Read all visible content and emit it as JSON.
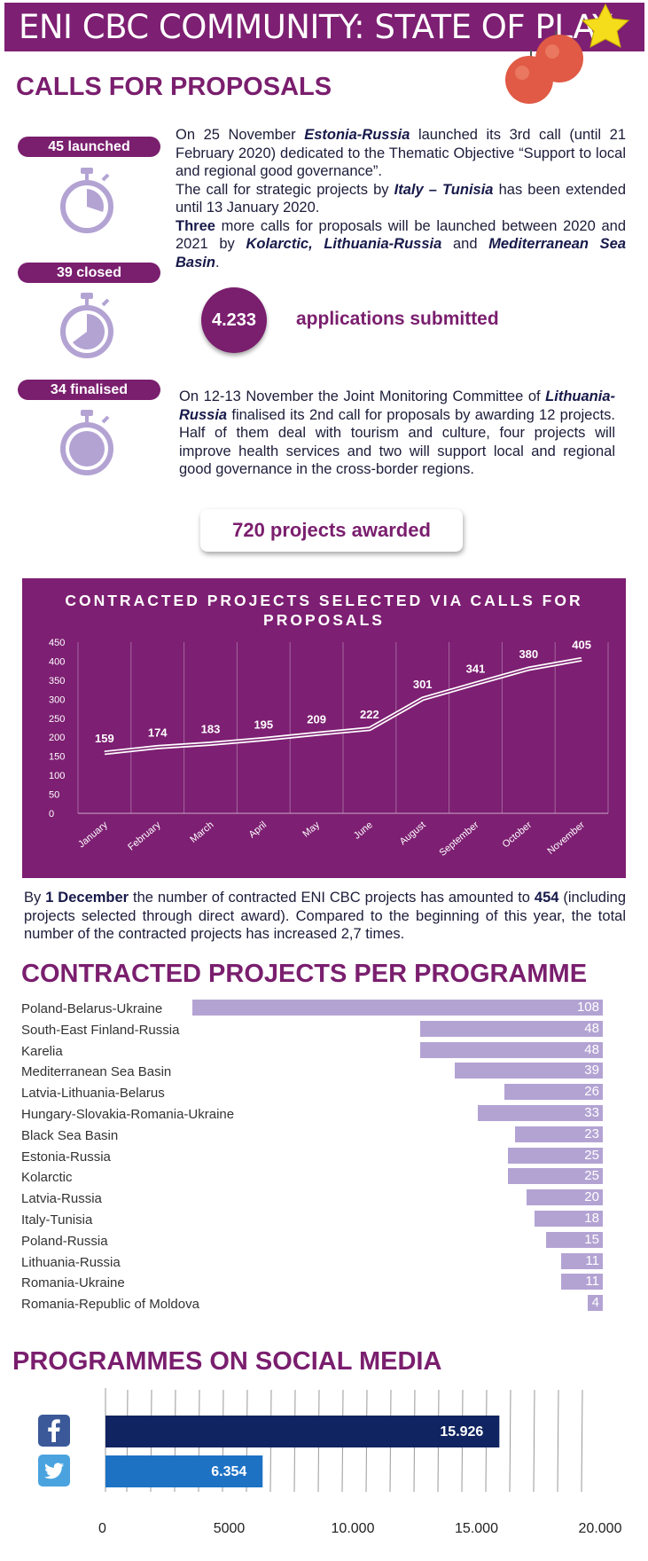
{
  "header": {
    "title": "ENI CBC COMMUNITY: STATE OF PLAY"
  },
  "calls": {
    "section_title": "CALLS FOR PROPOSALS",
    "launched_label": "45 launched",
    "closed_label": "39 closed",
    "finalised_label": "34 finalised",
    "para1": {
      "t1": "On 25 November ",
      "b1": "Estonia-Russia",
      "t2": " launched its 3rd call (until 21 February 2020) dedicated to the Thematic Objective “Support to local and regional good governance”.",
      "t3": "The call for strategic projects by ",
      "b2": "Italy – Tunisia",
      "t4": " has been extended until 13 January 2020.",
      "b3": "Three",
      "t5": " more calls for proposals will be launched between 2020 and 2021 by ",
      "b4": "Kolarctic, Lithuania-Russia",
      "t6": " and ",
      "b5": "Mediterranean Sea Basin",
      "t7": "."
    },
    "applications_number": "4.233",
    "applications_label": "applications submitted",
    "para2": {
      "t1": "On 12-13 November the Joint Monitoring Committee of ",
      "b1": "Lithuania-Russia",
      "t2": " finalised its 2nd call for proposals by awarding 12 projects. Half of them deal with tourism and culture, four projects will improve health services and two will support local and regional good governance in the cross-border regions."
    },
    "awarded_label": "720 projects awarded"
  },
  "chart_data": [
    {
      "type": "line",
      "title": "CONTRACTED PROJECTS SELECTED VIA CALLS FOR PROPOSALS",
      "categories": [
        "January",
        "February",
        "March",
        "April",
        "May",
        "June",
        "August",
        "September",
        "October",
        "November"
      ],
      "values": [
        159,
        174,
        183,
        195,
        209,
        222,
        301,
        341,
        380,
        405
      ],
      "ylim": [
        0,
        450
      ],
      "yticks": [
        0,
        50,
        100,
        150,
        200,
        250,
        300,
        350,
        400,
        450
      ],
      "grid": "vertical"
    },
    {
      "type": "bar",
      "orientation": "horizontal",
      "categories": [
        "Poland-Belarus-Ukraine",
        "South-East Finland-Russia",
        "Karelia",
        "Mediterranean Sea Basin",
        "Latvia-Lithuania-Belarus",
        "Hungary-Slovakia-Romania-Ukraine",
        "Black Sea Basin",
        "Estonia-Russia",
        "Kolarctic",
        "Latvia-Russia",
        "Italy-Tunisia",
        "Poland-Russia",
        "Lithuania-Russia",
        "Romania-Ukraine",
        "Romania-Republic of Moldova"
      ],
      "values": [
        108,
        48,
        48,
        39,
        26,
        33,
        23,
        25,
        25,
        20,
        18,
        15,
        11,
        11,
        4
      ]
    },
    {
      "type": "bar",
      "orientation": "horizontal",
      "categories": [
        "Facebook",
        "Twitter"
      ],
      "values": [
        15926,
        6354
      ],
      "value_labels": [
        "15.926",
        "6.354"
      ],
      "xlim": [
        0,
        20000
      ],
      "xtick_labels": [
        "0",
        "5000",
        "10.000",
        "15.000",
        "20.000"
      ],
      "colors": [
        "#0f2460",
        "#1d72c4"
      ]
    }
  ],
  "contracted": {
    "t1": "By ",
    "b1": "1 December",
    "t2": " the number of contracted ENI CBC projects has amounted to ",
    "b2": "454",
    "t3": " (including projects selected through direct award). Compared to the beginning of this year, the total number of the contracted projects has increased 2,7 times."
  },
  "per_programme": {
    "section_title": "CONTRACTED PROJECTS PER PROGRAMME"
  },
  "social": {
    "section_title": "PROGRAMMES ON SOCIAL MEDIA"
  },
  "colors": {
    "brand_purple": "#7a1e6e",
    "bar_lavender": "#b3a3d3",
    "facebook": "#0f2460",
    "twitter": "#1d72c4"
  }
}
